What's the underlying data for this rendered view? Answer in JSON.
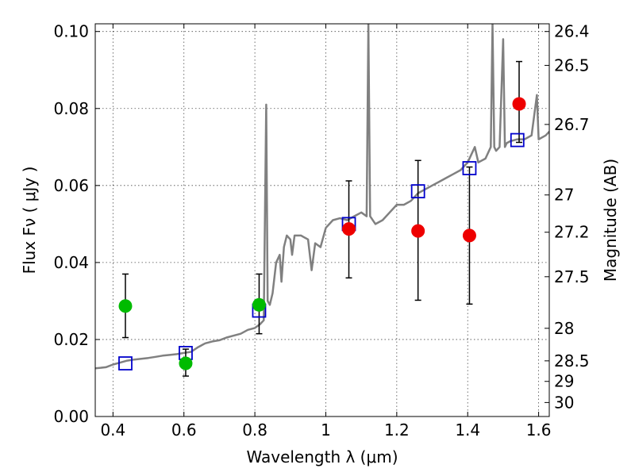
{
  "chart_data": {
    "type": "scatter",
    "title": "",
    "xlabel": "Wavelength  λ (μm)",
    "ylabel": "Flux  Fν  ( μJy )",
    "right_ylabel": "Magnitude (AB)",
    "xlim": [
      0.35,
      1.63
    ],
    "ylim": [
      0.0,
      0.102
    ],
    "grid": true,
    "legend": "none",
    "x_ticks": [
      0.4,
      0.6,
      0.8,
      1.0,
      1.2,
      1.4,
      1.6
    ],
    "x_tick_labels": [
      "0.4",
      "0.6",
      "0.8",
      "1",
      "1.2",
      "1.4",
      "1.6"
    ],
    "y_ticks": [
      0.0,
      0.02,
      0.04,
      0.06,
      0.08,
      0.1
    ],
    "y_tick_labels": [
      "0.00",
      "0.02",
      "0.04",
      "0.06",
      "0.08",
      "0.10"
    ],
    "right_ticks": [
      {
        "mag": 26.4,
        "label": "26.4"
      },
      {
        "mag": 26.5,
        "label": "26.5"
      },
      {
        "mag": 26.7,
        "label": "26.7"
      },
      {
        "mag": 27.0,
        "label": "27"
      },
      {
        "mag": 27.2,
        "label": "27.2"
      },
      {
        "mag": 27.5,
        "label": "27.5"
      },
      {
        "mag": 28.0,
        "label": "28"
      },
      {
        "mag": 28.5,
        "label": "28.5"
      },
      {
        "mag": 29.0,
        "label": "29"
      },
      {
        "mag": 30.0,
        "label": "30"
      }
    ],
    "series": [
      {
        "kind": "line",
        "color": "#808080",
        "points": [
          [
            0.35,
            0.0125
          ],
          [
            0.38,
            0.0128
          ],
          [
            0.4,
            0.0135
          ],
          [
            0.42,
            0.014
          ],
          [
            0.44,
            0.0145
          ],
          [
            0.46,
            0.0148
          ],
          [
            0.48,
            0.015
          ],
          [
            0.5,
            0.0152
          ],
          [
            0.52,
            0.0155
          ],
          [
            0.54,
            0.0158
          ],
          [
            0.56,
            0.016
          ],
          [
            0.58,
            0.0162
          ],
          [
            0.6,
            0.0165
          ],
          [
            0.62,
            0.0168
          ],
          [
            0.64,
            0.018
          ],
          [
            0.66,
            0.019
          ],
          [
            0.68,
            0.0195
          ],
          [
            0.7,
            0.0198
          ],
          [
            0.72,
            0.0205
          ],
          [
            0.74,
            0.021
          ],
          [
            0.76,
            0.0215
          ],
          [
            0.78,
            0.0225
          ],
          [
            0.8,
            0.023
          ],
          [
            0.815,
            0.024
          ],
          [
            0.825,
            0.025
          ],
          [
            0.832,
            0.081
          ],
          [
            0.836,
            0.03
          ],
          [
            0.842,
            0.029
          ],
          [
            0.85,
            0.032
          ],
          [
            0.86,
            0.04
          ],
          [
            0.87,
            0.042
          ],
          [
            0.875,
            0.035
          ],
          [
            0.882,
            0.044
          ],
          [
            0.89,
            0.047
          ],
          [
            0.9,
            0.046
          ],
          [
            0.905,
            0.042
          ],
          [
            0.912,
            0.047
          ],
          [
            0.93,
            0.047
          ],
          [
            0.95,
            0.046
          ],
          [
            0.96,
            0.038
          ],
          [
            0.97,
            0.045
          ],
          [
            0.985,
            0.044
          ],
          [
            1.0,
            0.049
          ],
          [
            1.02,
            0.051
          ],
          [
            1.04,
            0.0515
          ],
          [
            1.06,
            0.051
          ],
          [
            1.08,
            0.052
          ],
          [
            1.1,
            0.053
          ],
          [
            1.115,
            0.052
          ],
          [
            1.12,
            0.102
          ],
          [
            1.125,
            0.052
          ],
          [
            1.14,
            0.05
          ],
          [
            1.16,
            0.051
          ],
          [
            1.18,
            0.053
          ],
          [
            1.2,
            0.055
          ],
          [
            1.22,
            0.055
          ],
          [
            1.24,
            0.056
          ],
          [
            1.26,
            0.058
          ],
          [
            1.28,
            0.059
          ],
          [
            1.3,
            0.06
          ],
          [
            1.32,
            0.061
          ],
          [
            1.34,
            0.062
          ],
          [
            1.36,
            0.063
          ],
          [
            1.38,
            0.064
          ],
          [
            1.4,
            0.066
          ],
          [
            1.42,
            0.07
          ],
          [
            1.43,
            0.066
          ],
          [
            1.45,
            0.067
          ],
          [
            1.465,
            0.07
          ],
          [
            1.47,
            0.102
          ],
          [
            1.475,
            0.07
          ],
          [
            1.48,
            0.069
          ],
          [
            1.49,
            0.07
          ],
          [
            1.5,
            0.098
          ],
          [
            1.505,
            0.07
          ],
          [
            1.51,
            0.071
          ],
          [
            1.52,
            0.0715
          ],
          [
            1.54,
            0.072
          ],
          [
            1.56,
            0.072
          ],
          [
            1.58,
            0.073
          ],
          [
            1.595,
            0.0835
          ],
          [
            1.6,
            0.072
          ],
          [
            1.62,
            0.073
          ],
          [
            1.63,
            0.074
          ]
        ]
      },
      {
        "kind": "open_square",
        "color": "#0000cc",
        "points": [
          [
            0.435,
            0.0138
          ],
          [
            0.605,
            0.0165
          ],
          [
            0.812,
            0.0275
          ],
          [
            1.065,
            0.05
          ],
          [
            1.26,
            0.0585
          ],
          [
            1.405,
            0.0645
          ],
          [
            1.54,
            0.0718
          ]
        ]
      },
      {
        "kind": "dot",
        "color": "#00bb00",
        "points": [
          {
            "x": 0.435,
            "y": 0.0287,
            "err_low": 0.0205,
            "err_high": 0.037
          },
          {
            "x": 0.605,
            "y": 0.0138,
            "err_low": 0.0105,
            "err_high": 0.0175
          },
          {
            "x": 0.812,
            "y": 0.029,
            "err_low": 0.0215,
            "err_high": 0.037
          }
        ]
      },
      {
        "kind": "dot",
        "color": "#ee0000",
        "points": [
          {
            "x": 1.065,
            "y": 0.0487,
            "err_low": 0.036,
            "err_high": 0.0612
          },
          {
            "x": 1.26,
            "y": 0.0482,
            "err_low": 0.0302,
            "err_high": 0.0665
          },
          {
            "x": 1.405,
            "y": 0.047,
            "err_low": 0.0292,
            "err_high": 0.0648
          },
          {
            "x": 1.545,
            "y": 0.0812,
            "err_low": 0.0712,
            "err_high": 0.0922
          }
        ]
      }
    ]
  }
}
